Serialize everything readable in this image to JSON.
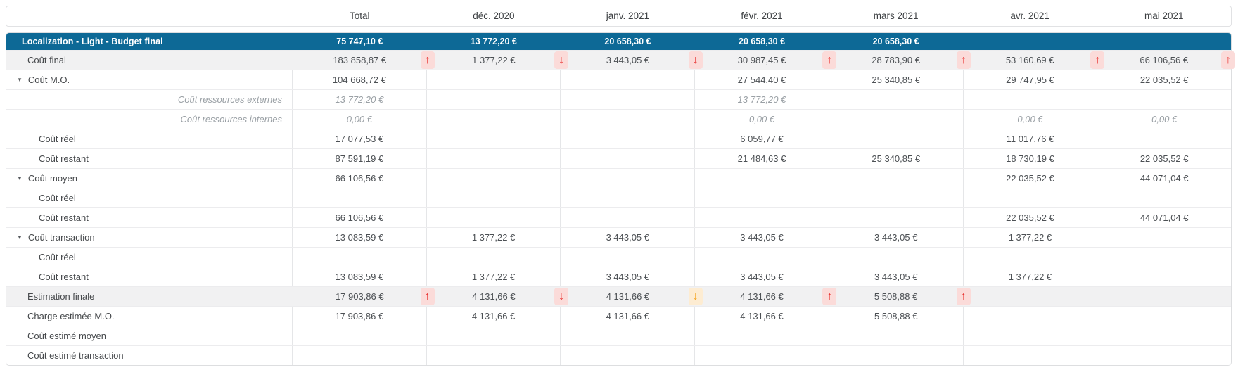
{
  "table": {
    "columns": [
      "Total",
      "déc. 2020",
      "janv. 2021",
      "févr. 2021",
      "mars 2021",
      "avr. 2021",
      "mai 2021"
    ],
    "budget_row": {
      "label": "Localization - Light - Budget final",
      "values": [
        "75 747,10 €",
        "13 772,20 €",
        "20 658,30 €",
        "20 658,30 €",
        "20 658,30 €",
        "",
        ""
      ]
    },
    "rows": [
      {
        "label": "Coût final",
        "type": "summary",
        "cells": [
          {
            "v": "183 858,87 €",
            "arrow": "up-red"
          },
          {
            "v": "1 377,22 €",
            "arrow": "down-red"
          },
          {
            "v": "3 443,05 €",
            "arrow": "down-red"
          },
          {
            "v": "30 987,45 €",
            "arrow": "up-red"
          },
          {
            "v": "28 783,90 €",
            "arrow": "up-red"
          },
          {
            "v": "53 160,69 €",
            "arrow": "up-red"
          },
          {
            "v": "66 106,56 €",
            "arrow": "up-red"
          }
        ]
      },
      {
        "label": "Coût M.O.",
        "type": "group",
        "cells": [
          {
            "v": "104 668,72 €"
          },
          {},
          {},
          {
            "v": "27 544,40 €"
          },
          {
            "v": "25 340,85 €"
          },
          {
            "v": "29 747,95 €"
          },
          {
            "v": "22 035,52 €"
          }
        ]
      },
      {
        "label": "Coût ressources externes",
        "type": "italic",
        "cells": [
          {
            "v": "13 772,20 €"
          },
          {},
          {},
          {
            "v": "13 772,20 €"
          },
          {},
          {},
          {}
        ]
      },
      {
        "label": "Coût ressources internes",
        "type": "italic",
        "cells": [
          {
            "v": "0,00 €"
          },
          {},
          {},
          {
            "v": "0,00 €"
          },
          {},
          {
            "v": "0,00 €"
          },
          {
            "v": "0,00 €"
          }
        ]
      },
      {
        "label": "Coût réel",
        "type": "child",
        "cells": [
          {
            "v": "17 077,53 €"
          },
          {},
          {},
          {
            "v": "6 059,77 €"
          },
          {},
          {
            "v": "11 017,76 €"
          },
          {}
        ]
      },
      {
        "label": "Coût restant",
        "type": "child",
        "cells": [
          {
            "v": "87 591,19 €"
          },
          {},
          {},
          {
            "v": "21 484,63 €"
          },
          {
            "v": "25 340,85 €"
          },
          {
            "v": "18 730,19 €"
          },
          {
            "v": "22 035,52 €"
          }
        ]
      },
      {
        "label": "Coût moyen",
        "type": "group",
        "cells": [
          {
            "v": "66 106,56 €"
          },
          {},
          {},
          {},
          {},
          {
            "v": "22 035,52 €"
          },
          {
            "v": "44 071,04 €"
          }
        ]
      },
      {
        "label": "Coût réel",
        "type": "child",
        "cells": [
          {},
          {},
          {},
          {},
          {},
          {},
          {}
        ]
      },
      {
        "label": "Coût restant",
        "type": "child",
        "cells": [
          {
            "v": "66 106,56 €"
          },
          {},
          {},
          {},
          {},
          {
            "v": "22 035,52 €"
          },
          {
            "v": "44 071,04 €"
          }
        ]
      },
      {
        "label": "Coût transaction",
        "type": "group",
        "cells": [
          {
            "v": "13 083,59 €"
          },
          {
            "v": "1 377,22 €"
          },
          {
            "v": "3 443,05 €"
          },
          {
            "v": "3 443,05 €"
          },
          {
            "v": "3 443,05 €"
          },
          {
            "v": "1 377,22 €"
          },
          {}
        ]
      },
      {
        "label": "Coût réel",
        "type": "child",
        "cells": [
          {},
          {},
          {},
          {},
          {},
          {},
          {}
        ]
      },
      {
        "label": "Coût restant",
        "type": "child",
        "cells": [
          {
            "v": "13 083,59 €"
          },
          {
            "v": "1 377,22 €"
          },
          {
            "v": "3 443,05 €"
          },
          {
            "v": "3 443,05 €"
          },
          {
            "v": "3 443,05 €"
          },
          {
            "v": "1 377,22 €"
          },
          {}
        ]
      },
      {
        "label": "Estimation finale",
        "type": "summary",
        "cells": [
          {
            "v": "17 903,86 €",
            "arrow": "up-red"
          },
          {
            "v": "4 131,66 €",
            "arrow": "down-red"
          },
          {
            "v": "4 131,66 €",
            "arrow": "down-orange"
          },
          {
            "v": "4 131,66 €",
            "arrow": "up-red"
          },
          {
            "v": "5 508,88 €",
            "arrow": "up-red"
          },
          {},
          {}
        ]
      },
      {
        "label": "Charge estimée M.O.",
        "type": "plain",
        "cells": [
          {
            "v": "17 903,86 €"
          },
          {
            "v": "4 131,66 €"
          },
          {
            "v": "4 131,66 €"
          },
          {
            "v": "4 131,66 €"
          },
          {
            "v": "5 508,88 €"
          },
          {},
          {}
        ]
      },
      {
        "label": "Coût estimé moyen",
        "type": "plain",
        "cells": [
          {},
          {},
          {},
          {},
          {},
          {},
          {}
        ]
      },
      {
        "label": "Coût estimé transaction",
        "type": "plain",
        "cells": [
          {},
          {},
          {},
          {},
          {},
          {},
          {}
        ]
      }
    ]
  },
  "icons": {
    "collapse": "▼",
    "up": "↑",
    "down": "↓"
  },
  "colors": {
    "header_blue": "#0d6996",
    "trend_red": "#e8312f",
    "trend_red_bg": "#fbdbd9",
    "trend_orange": "#f6a623",
    "trend_orange_bg": "#fdecd2",
    "summary_row_bg": "#f1f1f2"
  }
}
